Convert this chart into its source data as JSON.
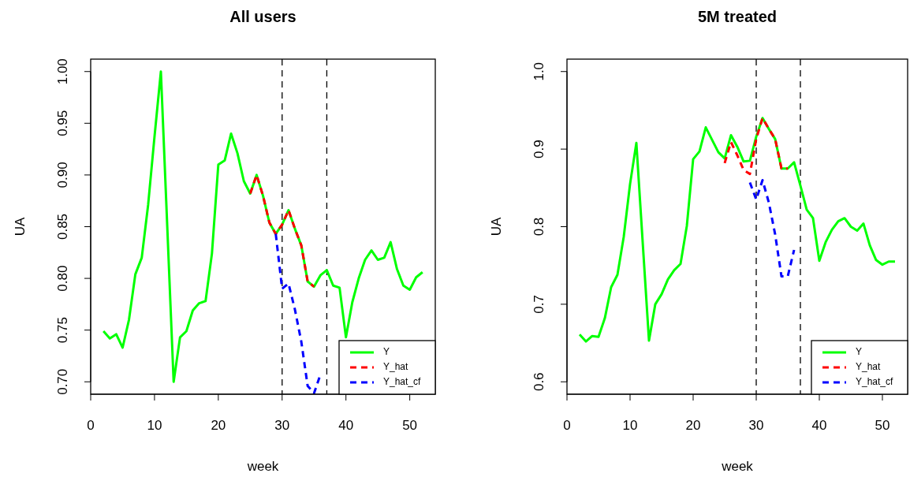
{
  "chart_data": [
    {
      "type": "line",
      "title": "All users",
      "xlabel": "week",
      "ylabel": "UA",
      "xlim": [
        0,
        54
      ],
      "ylim": [
        0.688,
        1.012
      ],
      "xticks": [
        0,
        10,
        20,
        30,
        40,
        50
      ],
      "yticks": [
        {
          "value": 0.7,
          "label": "0.70"
        },
        {
          "value": 0.75,
          "label": "0.75"
        },
        {
          "value": 0.8,
          "label": "0.80"
        },
        {
          "value": 0.85,
          "label": "0.85"
        },
        {
          "value": 0.9,
          "label": "0.90"
        },
        {
          "value": 0.95,
          "label": "0.95"
        },
        {
          "value": 1.0,
          "label": "1.00"
        }
      ],
      "grid": false,
      "legend": "bottom right",
      "ref_lines": [
        {
          "axis": "x",
          "value": 30,
          "color": "#000000",
          "line_style": "dashed"
        },
        {
          "axis": "x",
          "value": 37,
          "color": "#000000",
          "line_style": "dashed"
        }
      ],
      "series": [
        {
          "name": "Y",
          "color": "#00ff00",
          "line_style": "solid",
          "x": [
            2,
            3,
            4,
            5,
            6,
            7,
            8,
            9,
            10,
            11,
            12,
            13,
            14,
            15,
            16,
            17,
            18,
            19,
            20,
            21,
            22,
            23,
            24,
            25,
            26,
            27,
            28,
            29,
            30,
            31,
            32,
            33,
            34,
            35,
            36,
            37,
            38,
            39,
            40,
            41,
            42,
            43,
            44,
            45,
            46,
            47,
            48,
            49,
            50,
            51,
            52
          ],
          "values": [
            0.749,
            0.742,
            0.746,
            0.733,
            0.76,
            0.804,
            0.82,
            0.871,
            0.937,
            1.0,
            0.85,
            0.7,
            0.743,
            0.749,
            0.769,
            0.776,
            0.778,
            0.824,
            0.91,
            0.914,
            0.94,
            0.921,
            0.894,
            0.882,
            0.9,
            0.88,
            0.854,
            0.843,
            0.852,
            0.866,
            0.848,
            0.832,
            0.797,
            0.792,
            0.803,
            0.808,
            0.793,
            0.791,
            0.743,
            0.777,
            0.8,
            0.818,
            0.827,
            0.818,
            0.82,
            0.835,
            0.809,
            0.793,
            0.789,
            0.801,
            0.806
          ]
        },
        {
          "name": "Y_hat",
          "color": "#ff0000",
          "line_style": "dashed",
          "x": [
            25,
            26,
            27,
            28,
            29,
            30,
            31,
            32,
            33,
            34,
            35
          ],
          "values": [
            0.882,
            0.9,
            0.88,
            0.854,
            0.843,
            0.852,
            0.866,
            0.848,
            0.832,
            0.797,
            0.792
          ]
        },
        {
          "name": "Y_hat_cf",
          "color": "#0000ff",
          "line_style": "dashed",
          "x": [
            29,
            30,
            31,
            32,
            33,
            34,
            35,
            36
          ],
          "values": [
            0.843,
            0.79,
            0.795,
            0.77,
            0.739,
            0.696,
            0.689,
            0.707
          ]
        }
      ]
    },
    {
      "type": "line",
      "title": "5M treated",
      "xlabel": "week",
      "ylabel": "UA",
      "xlim": [
        0,
        54
      ],
      "ylim": [
        0.584,
        1.016
      ],
      "xticks": [
        0,
        10,
        20,
        30,
        40,
        50
      ],
      "yticks": [
        {
          "value": 0.6,
          "label": "0.6"
        },
        {
          "value": 0.7,
          "label": "0.7"
        },
        {
          "value": 0.8,
          "label": "0.8"
        },
        {
          "value": 0.9,
          "label": "0.9"
        },
        {
          "value": 1.0,
          "label": "1.0"
        }
      ],
      "grid": false,
      "legend": "bottom right",
      "ref_lines": [
        {
          "axis": "x",
          "value": 30,
          "color": "#000000",
          "line_style": "dashed"
        },
        {
          "axis": "x",
          "value": 37,
          "color": "#000000",
          "line_style": "dashed"
        }
      ],
      "series": [
        {
          "name": "Y",
          "color": "#00ff00",
          "line_style": "solid",
          "x": [
            2,
            3,
            4,
            5,
            6,
            7,
            8,
            9,
            10,
            11,
            12,
            13,
            14,
            15,
            16,
            17,
            18,
            19,
            20,
            21,
            22,
            23,
            24,
            25,
            26,
            27,
            28,
            29,
            30,
            31,
            32,
            33,
            34,
            35,
            36,
            37,
            38,
            39,
            40,
            41,
            42,
            43,
            44,
            45,
            46,
            47,
            48,
            49,
            50,
            51,
            52
          ],
          "values": [
            0.661,
            0.652,
            0.659,
            0.658,
            0.682,
            0.722,
            0.738,
            0.787,
            0.855,
            0.908,
            0.78,
            0.653,
            0.7,
            0.713,
            0.732,
            0.744,
            0.752,
            0.801,
            0.887,
            0.897,
            0.928,
            0.912,
            0.896,
            0.888,
            0.918,
            0.903,
            0.884,
            0.885,
            0.916,
            0.94,
            0.926,
            0.913,
            0.875,
            0.875,
            0.883,
            0.853,
            0.822,
            0.811,
            0.756,
            0.78,
            0.796,
            0.807,
            0.811,
            0.8,
            0.795,
            0.804,
            0.776,
            0.757,
            0.751,
            0.755,
            0.755
          ]
        },
        {
          "name": "Y_hat",
          "color": "#ff0000",
          "line_style": "dashed",
          "x": [
            25,
            26,
            27,
            28,
            29,
            30,
            31,
            32,
            33,
            34,
            35
          ],
          "values": [
            0.882,
            0.909,
            0.892,
            0.873,
            0.868,
            0.913,
            0.94,
            0.926,
            0.913,
            0.875,
            0.875
          ]
        },
        {
          "name": "Y_hat_cf",
          "color": "#0000ff",
          "line_style": "dashed",
          "x": [
            29,
            30,
            31,
            32,
            33,
            34,
            35,
            36
          ],
          "values": [
            0.857,
            0.835,
            0.86,
            0.831,
            0.79,
            0.736,
            0.736,
            0.77
          ]
        }
      ]
    }
  ]
}
